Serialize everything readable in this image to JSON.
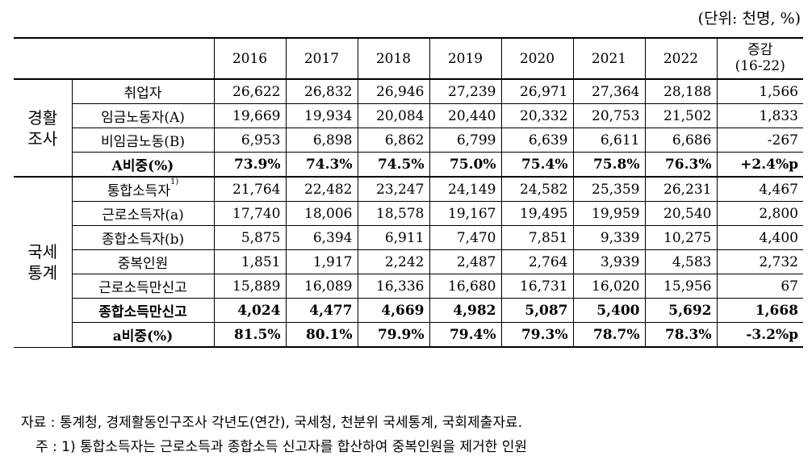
{
  "unit": "(단위: 천명, %)",
  "header": {
    "years": [
      "2016",
      "2017",
      "2018",
      "2019",
      "2020",
      "2021",
      "2022"
    ],
    "change_line1": "증감",
    "change_line2": "(16-22)"
  },
  "groups": {
    "g1_line1": "경활",
    "g1_line2": "조사",
    "g2_line1": "국세",
    "g2_line2": "통계"
  },
  "rows": [
    {
      "label": "취업자",
      "values": [
        "26,622",
        "26,832",
        "26,946",
        "27,239",
        "26,971",
        "27,364",
        "28,188",
        "1,566"
      ]
    },
    {
      "label": "임금노동자(A)",
      "values": [
        "19,669",
        "19,934",
        "20,084",
        "20,440",
        "20,332",
        "20,753",
        "21,502",
        "1,833"
      ]
    },
    {
      "label": "비임금노동(B)",
      "values": [
        "6,953",
        "6,898",
        "6,862",
        "6,799",
        "6,639",
        "6,611",
        "6,686",
        "-267"
      ]
    },
    {
      "label": "A비중(%)",
      "values": [
        "73.9%",
        "74.3%",
        "74.5%",
        "75.0%",
        "75.4%",
        "75.8%",
        "76.3%",
        "+2.4%p"
      ]
    },
    {
      "label": "통합소득자",
      "sup": "1)",
      "values": [
        "21,764",
        "22,482",
        "23,247",
        "24,149",
        "24,582",
        "25,359",
        "26,231",
        "4,467"
      ]
    },
    {
      "label": "근로소득자(a)",
      "values": [
        "17,740",
        "18,006",
        "18,578",
        "19,167",
        "19,495",
        "19,959",
        "20,540",
        "2,800"
      ]
    },
    {
      "label": "종합소득자(b)",
      "values": [
        "5,875",
        "6,394",
        "6,911",
        "7,470",
        "7,851",
        "9,339",
        "10,275",
        "4,400"
      ]
    },
    {
      "label": "중복인원",
      "values": [
        "1,851",
        "1,917",
        "2,242",
        "2,487",
        "2,764",
        "3,939",
        "4,583",
        "2,732"
      ]
    },
    {
      "label": "근로소득만신고",
      "values": [
        "15,889",
        "16,089",
        "16,336",
        "16,680",
        "16,731",
        "16,020",
        "15,956",
        "67"
      ]
    },
    {
      "label": "종합소득만신고",
      "values": [
        "4,024",
        "4,477",
        "4,669",
        "4,982",
        "5,087",
        "5,400",
        "5,692",
        "1,668"
      ]
    },
    {
      "label": "a비중(%)",
      "values": [
        "81.5%",
        "80.1%",
        "79.9%",
        "79.4%",
        "79.3%",
        "78.7%",
        "78.3%",
        "-3.2%p"
      ]
    }
  ],
  "footnotes": {
    "source": "자료 : 통계청, 경제활동인구조사 각년도(연간), 국세청, 천분위 국세통계, 국회제출자료.",
    "note": "주 : 1) 통합소득자는 근로소득과 종합소득 신고자를 합산하여 중복인원을 제거한 인원"
  }
}
